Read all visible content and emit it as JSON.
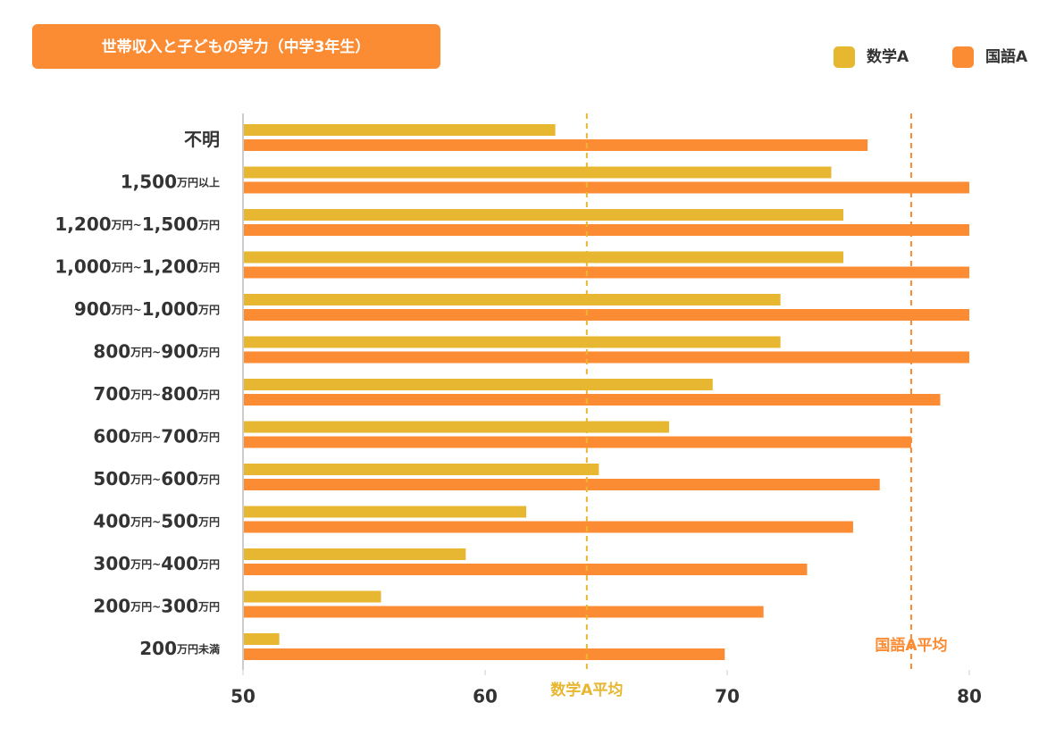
{
  "chart_data": {
    "type": "hbar",
    "title": "世帯収入と子どもの学力（中学3年生）",
    "categories": [
      "不明",
      "1,500万円以上",
      "1,200万円~1,500万円",
      "1,000万円~1,200万円",
      "900万円~1,000万円",
      "800万円~900万円",
      "700万円~800万円",
      "600万円~700万円",
      "500万円~600万円",
      "400万円~500万円",
      "300万円~400万円",
      "200万円~300万円",
      "200万円未満"
    ],
    "series": [
      {
        "name": "数学A",
        "color": "#e8b731",
        "values": [
          62.9,
          74.3,
          74.8,
          74.8,
          72.2,
          72.2,
          69.4,
          67.6,
          64.7,
          61.7,
          59.2,
          55.7,
          51.5
        ],
        "average": 64.2,
        "average_label": "数学A平均"
      },
      {
        "name": "国語A",
        "color": "#fb8c34",
        "values": [
          75.8,
          80.0,
          80.0,
          80.0,
          80.0,
          80.0,
          78.8,
          77.6,
          76.3,
          75.2,
          73.3,
          71.5,
          69.9
        ],
        "average": 77.6,
        "average_label": "国語A平均"
      }
    ],
    "xlim": [
      50,
      80
    ],
    "xticks": [
      50,
      60,
      70,
      80
    ],
    "legend": "top-right"
  }
}
